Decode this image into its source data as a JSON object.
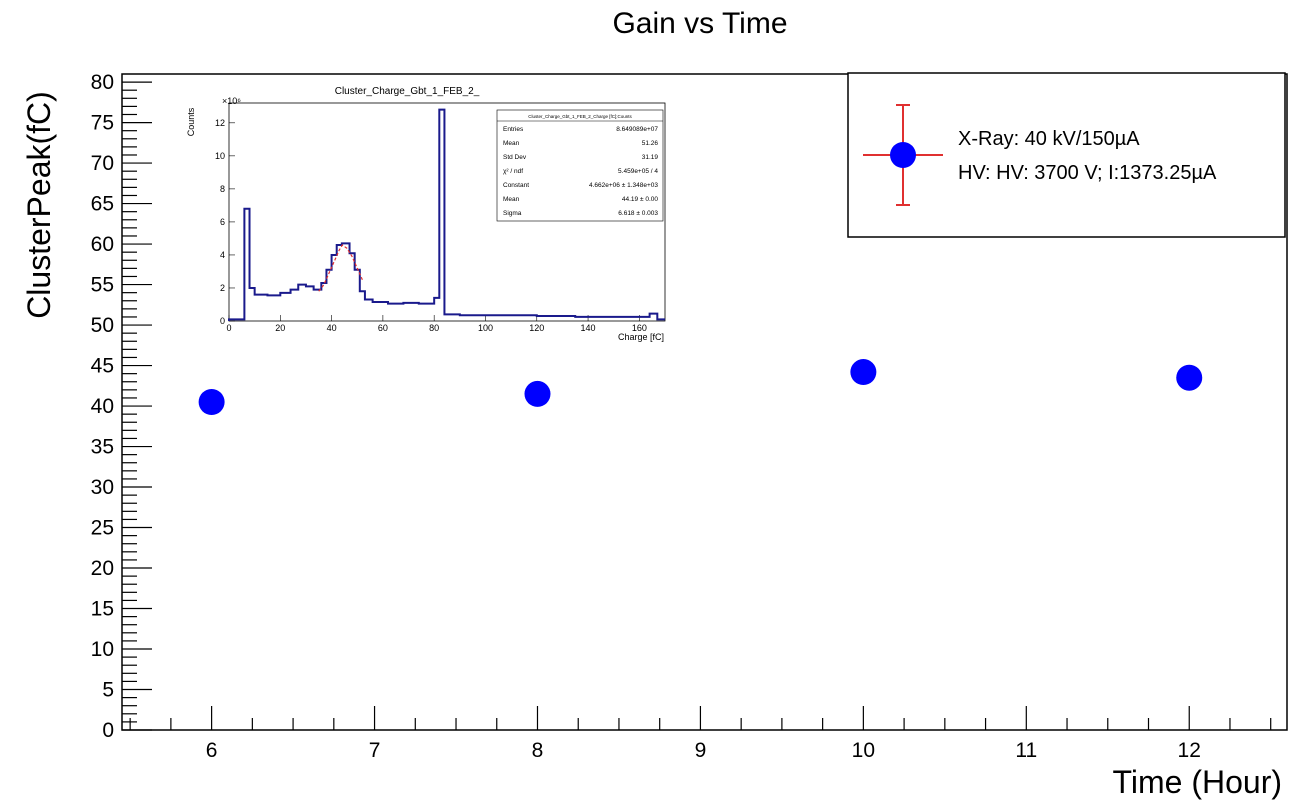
{
  "chart_data": {
    "type": "scatter",
    "title": "Gain vs Time",
    "xlabel": "Time (Hour)",
    "ylabel": "ClusterPeak(fC)",
    "xlim": [
      5.45,
      12.6
    ],
    "ylim": [
      0,
      81
    ],
    "x_ticks": [
      "6",
      "7",
      "8",
      "9",
      "10",
      "11",
      "12"
    ],
    "y_ticks": [
      "0",
      "5",
      "10",
      "15",
      "20",
      "25",
      "30",
      "35",
      "40",
      "45",
      "50",
      "55",
      "60",
      "65",
      "70",
      "75",
      "80"
    ],
    "grid": false,
    "legend_position": "top-right",
    "marker_color": "#0000ff",
    "error_bar_color": "#e03030",
    "series": [
      {
        "points": [
          {
            "x": 6,
            "y": 40.5
          },
          {
            "x": 8,
            "y": 41.5
          },
          {
            "x": 10,
            "y": 44.2
          },
          {
            "x": 12,
            "y": 43.5
          }
        ]
      }
    ],
    "legend": {
      "line1": "X-Ray: 40 kV/150µA",
      "line2": "HV: HV: 3700 V; I:1373.25µA"
    },
    "inset": {
      "type": "histogram",
      "title": "Cluster_Charge_Gbt_1_FEB_2_",
      "xlabel": "Charge [fC]",
      "ylabel": "Counts",
      "y_multiplier": "×10⁶",
      "xlim": [
        0,
        170
      ],
      "ylim": [
        0,
        13.2
      ],
      "x_ticks": [
        "0",
        "20",
        "40",
        "60",
        "80",
        "100",
        "120",
        "140",
        "160"
      ],
      "y_ticks": [
        "0",
        "2",
        "4",
        "6",
        "8",
        "10",
        "12"
      ],
      "hist_color": "#1a1a8c",
      "fit_color": "#e03030",
      "bins": [
        [
          0,
          6,
          0.1
        ],
        [
          6,
          8,
          6.8
        ],
        [
          8,
          10,
          2.0
        ],
        [
          10,
          15,
          1.6
        ],
        [
          15,
          20,
          1.55
        ],
        [
          20,
          24,
          1.7
        ],
        [
          24,
          27,
          1.9
        ],
        [
          27,
          30,
          2.2
        ],
        [
          30,
          33,
          2.1
        ],
        [
          33,
          36,
          1.9
        ],
        [
          36,
          38,
          2.3
        ],
        [
          38,
          40,
          3.1
        ],
        [
          40,
          42,
          4.0
        ],
        [
          42,
          44,
          4.6
        ],
        [
          44,
          47,
          4.7
        ],
        [
          47,
          49,
          4.1
        ],
        [
          49,
          51,
          3.1
        ],
        [
          51,
          53,
          1.8
        ],
        [
          53,
          56,
          1.3
        ],
        [
          56,
          62,
          1.15
        ],
        [
          62,
          68,
          1.05
        ],
        [
          68,
          74,
          1.1
        ],
        [
          74,
          80,
          1.05
        ],
        [
          80,
          82,
          1.4
        ],
        [
          82,
          84,
          12.8
        ],
        [
          84,
          90,
          0.4
        ],
        [
          90,
          120,
          0.35
        ],
        [
          120,
          135,
          0.3
        ],
        [
          135,
          160,
          0.25
        ],
        [
          160,
          164,
          0.25
        ],
        [
          164,
          167,
          0.45
        ],
        [
          167,
          170,
          0.1
        ]
      ],
      "fit": [
        [
          35,
          1.8
        ],
        [
          37,
          2.2
        ],
        [
          39,
          2.9
        ],
        [
          41,
          3.6
        ],
        [
          43,
          4.3
        ],
        [
          44.2,
          4.6
        ],
        [
          46,
          4.4
        ],
        [
          48,
          3.9
        ],
        [
          50,
          3.2
        ],
        [
          52,
          2.5
        ]
      ],
      "stats_header": "Cluster_Charge_Gbt_1_FEB_2_Charge [fC];Counts",
      "stats": [
        {
          "name": "Entries",
          "value": "8.649089e+07"
        },
        {
          "name": "Mean",
          "value": "51.26"
        },
        {
          "name": "Std Dev",
          "value": "31.19"
        },
        {
          "name": "χ² / ndf",
          "value": "5.459e+05 / 4"
        },
        {
          "name": "Constant",
          "value": "4.662e+06 ± 1.348e+03"
        },
        {
          "name": "Mean",
          "value": "44.19 ± 0.00"
        },
        {
          "name": "Sigma",
          "value": "6.618 ± 0.003"
        }
      ]
    }
  }
}
